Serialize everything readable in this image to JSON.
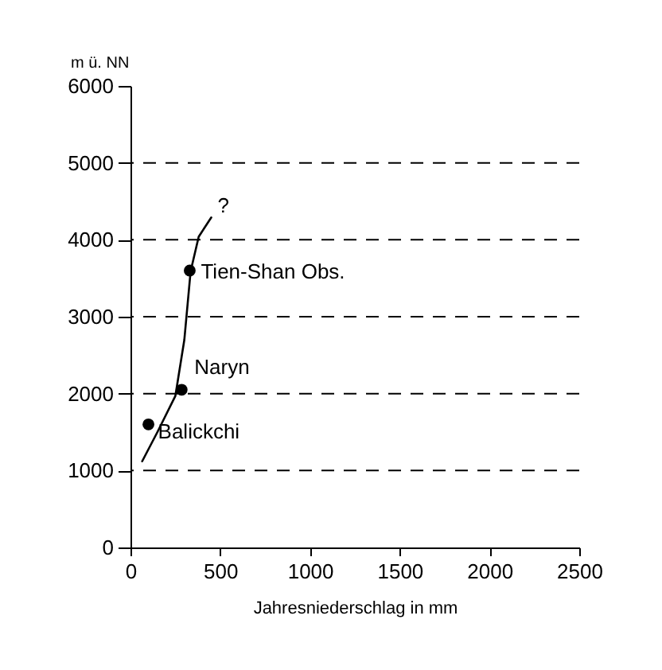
{
  "chart_data": {
    "type": "scatter",
    "ylabel": "m ü. NN",
    "xlabel": "Jahresniederschlag in mm",
    "xlim": [
      0,
      2500
    ],
    "xticks": [
      0,
      500,
      1000,
      1500,
      2000,
      2500
    ],
    "ylim": [
      0,
      6000
    ],
    "yticks": [
      0,
      1000,
      2000,
      3000,
      4000,
      5000,
      6000
    ],
    "grid": false,
    "series": [
      {
        "type": "line",
        "color": "#000000",
        "x": [
          65,
          150,
          250,
          300,
          335,
          380,
          450
        ],
        "values": [
          1120,
          1500,
          1970,
          2700,
          3590,
          4040,
          4290
        ]
      },
      {
        "marker": "circle",
        "color": "#000000",
        "x": [
          100,
          285,
          330
        ],
        "values": [
          1600,
          2050,
          3600
        ]
      }
    ],
    "ref_lines": [
      {
        "axis": "y",
        "value": 1000,
        "line_style": "dashed"
      },
      {
        "axis": "y",
        "value": 2000,
        "line_style": "dashed"
      },
      {
        "axis": "y",
        "value": 3000,
        "line_style": "dashed"
      },
      {
        "axis": "y",
        "value": 4000,
        "line_style": "dashed"
      },
      {
        "axis": "y",
        "value": 5000,
        "line_style": "dashed"
      }
    ],
    "annotations": [
      {
        "text": "Balickchi",
        "x": 100,
        "y": 1600
      },
      {
        "text": "Naryn",
        "x": 285,
        "y": 2050
      },
      {
        "text": "Tien-Shan Obs.",
        "x": 330,
        "y": 3600
      },
      {
        "text": "?",
        "x": 450,
        "y": 4290
      }
    ]
  }
}
